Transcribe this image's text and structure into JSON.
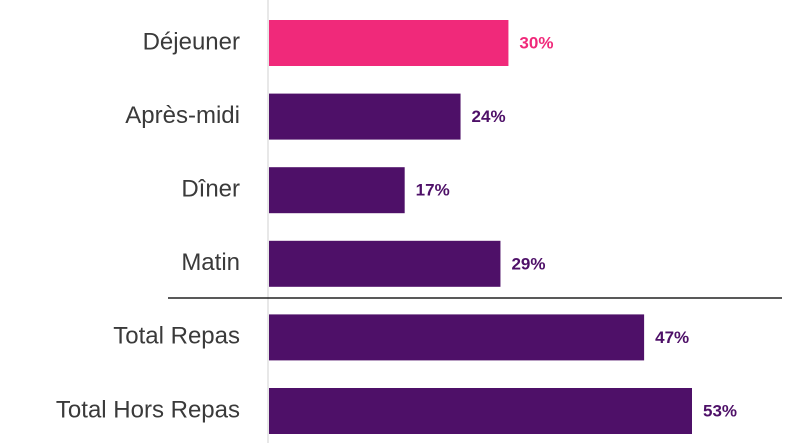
{
  "chart_data": {
    "type": "bar",
    "orientation": "horizontal",
    "categories": [
      "Déjeuner",
      "Après-midi",
      "Dîner",
      "Matin",
      "Total Repas",
      "Total Hors Repas"
    ],
    "values": [
      30,
      24,
      17,
      29,
      47,
      53
    ],
    "value_labels": [
      "30%",
      "24%",
      "17%",
      "29%",
      "47%",
      "53%"
    ],
    "colors": [
      "#f0297a",
      "#4e1068",
      "#4e1068",
      "#4e1068",
      "#4e1068",
      "#4e1068"
    ]
  }
}
